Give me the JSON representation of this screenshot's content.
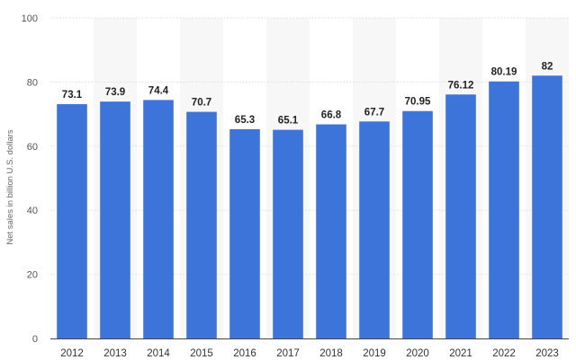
{
  "chart_data": {
    "type": "bar",
    "title": "",
    "xlabel": "",
    "ylabel": "Net sales in billion U.S. dollars",
    "categories": [
      "2012",
      "2013",
      "2014",
      "2015",
      "2016",
      "2017",
      "2018",
      "2019",
      "2020",
      "2021",
      "2022",
      "2023"
    ],
    "values": [
      73.1,
      73.9,
      74.4,
      70.7,
      65.3,
      65.1,
      66.8,
      67.7,
      70.95,
      76.12,
      80.19,
      82
    ],
    "value_labels": [
      "73.1",
      "73.9",
      "74.4",
      "70.7",
      "65.3",
      "65.1",
      "66.8",
      "67.7",
      "70.95",
      "76.12",
      "80.19",
      "82"
    ],
    "ylim": [
      0,
      100
    ],
    "yticks": [
      "0",
      "20",
      "40",
      "60",
      "80",
      "100"
    ],
    "grid": true,
    "colors": {
      "bar": "#3d74d9",
      "band": "#f7f7f7"
    }
  }
}
